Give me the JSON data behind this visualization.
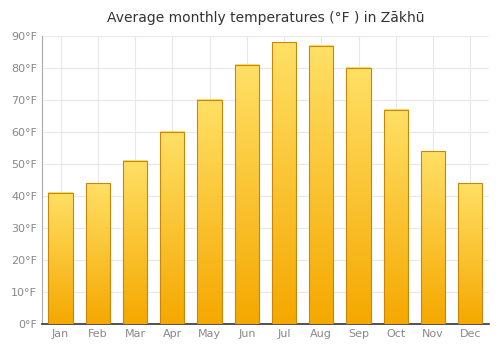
{
  "title": "Average monthly temperatures (°F ) in Zākhū",
  "categories": [
    "Jan",
    "Feb",
    "Mar",
    "Apr",
    "May",
    "Jun",
    "Jul",
    "Aug",
    "Sep",
    "Oct",
    "Nov",
    "Dec"
  ],
  "values": [
    41,
    44,
    51,
    60,
    70,
    81,
    88,
    87,
    80,
    67,
    54,
    44
  ],
  "bar_color_bottom": "#F5A800",
  "bar_color_top": "#FFE066",
  "bar_edge_color": "#C8860A",
  "ylim": [
    0,
    90
  ],
  "yticks": [
    0,
    10,
    20,
    30,
    40,
    50,
    60,
    70,
    80,
    90
  ],
  "ytick_labels": [
    "0°F",
    "10°F",
    "20°F",
    "30°F",
    "40°F",
    "50°F",
    "60°F",
    "70°F",
    "80°F",
    "90°F"
  ],
  "background_color": "#ffffff",
  "plot_bg_color": "#ffffff",
  "grid_color": "#e8e8e8",
  "title_fontsize": 10,
  "tick_fontsize": 8,
  "bar_width": 0.65
}
